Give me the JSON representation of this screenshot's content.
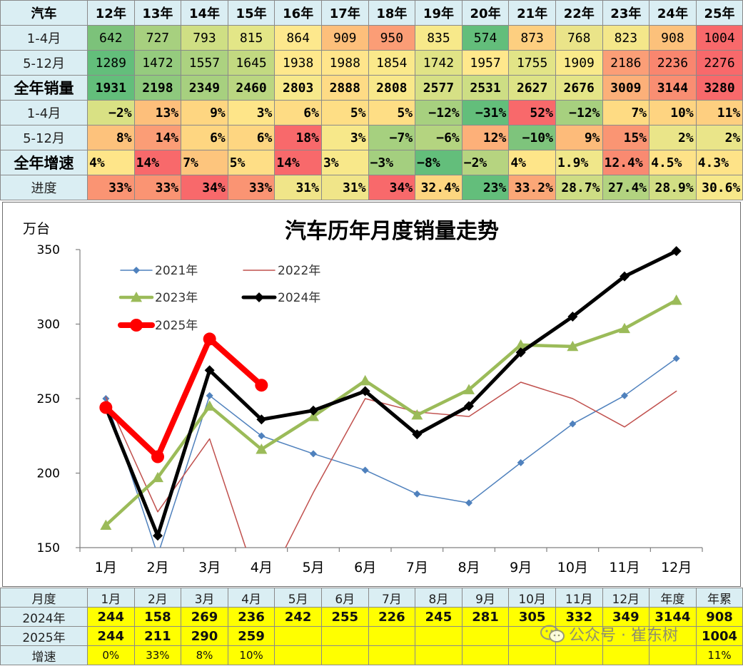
{
  "top_table": {
    "corner": "汽车",
    "years": [
      "12年",
      "13年",
      "14年",
      "15年",
      "16年",
      "17年",
      "18年",
      "19年",
      "20年",
      "21年",
      "22年",
      "23年",
      "24年",
      "25年"
    ],
    "rows": [
      {
        "label": "1-4月",
        "big": false,
        "bold": false,
        "align": "center",
        "values": [
          "642",
          "727",
          "793",
          "815",
          "864",
          "909",
          "950",
          "835",
          "574",
          "873",
          "768",
          "823",
          "908",
          "1004"
        ],
        "colors": [
          "#7cc27a",
          "#a7d07f",
          "#cfdf84",
          "#e3e687",
          "#fde88d",
          "#fdbf7b",
          "#fb9d76",
          "#f7e98a",
          "#63be7b",
          "#fdcf80",
          "#eae489",
          "#f4e78a",
          "#fcc17b",
          "#f8696b"
        ]
      },
      {
        "label": "5-12月",
        "big": false,
        "bold": false,
        "align": "center",
        "values": [
          "1289",
          "1472",
          "1557",
          "1645",
          "1938",
          "1988",
          "1854",
          "1742",
          "1957",
          "1755",
          "1909",
          "2186",
          "2236",
          "2276"
        ],
        "colors": [
          "#63be7b",
          "#95cb7e",
          "#acd280",
          "#c2d981",
          "#fee88c",
          "#ffe58b",
          "#fae98b",
          "#e0e386",
          "#ffe88c",
          "#e2e487",
          "#f9ea8b",
          "#fb9e77",
          "#f9866f",
          "#f8696b"
        ]
      },
      {
        "label": "全年销量",
        "big": true,
        "bold": true,
        "align": "center",
        "values": [
          "1931",
          "2198",
          "2349",
          "2460",
          "2803",
          "2888",
          "2808",
          "2577",
          "2531",
          "2627",
          "2676",
          "3009",
          "3144",
          "3280"
        ],
        "colors": [
          "#63be7b",
          "#8ec97d",
          "#a7d07f",
          "#bad681",
          "#f7e98b",
          "#fedb85",
          "#f8e88a",
          "#d6e085",
          "#cdde84",
          "#dde386",
          "#e4e587",
          "#fcb079",
          "#f98e72",
          "#f8696b"
        ]
      },
      {
        "label": "1-4月",
        "big": false,
        "bold": true,
        "align": "right",
        "values": [
          "−2%",
          "13%",
          "9%",
          "3%",
          "6%",
          "5%",
          "5%",
          "−12%",
          "−31%",
          "52%",
          "−12%",
          "7%",
          "10%",
          "11%"
        ],
        "colors": [
          "#d9e184",
          "#fdbf7b",
          "#fed681",
          "#fee589",
          "#fedc84",
          "#fede85",
          "#fede85",
          "#a7d07f",
          "#63be7b",
          "#f8696b",
          "#a7d07f",
          "#fedb83",
          "#fed481",
          "#fecf80"
        ]
      },
      {
        "label": "5-12月",
        "big": false,
        "bold": true,
        "align": "right",
        "values": [
          "8%",
          "14%",
          "6%",
          "6%",
          "18%",
          "3%",
          "−7%",
          "−6%",
          "12%",
          "−10%",
          "9%",
          "15%",
          "2%",
          "2%"
        ],
        "colors": [
          "#fdc27c",
          "#fb9d76",
          "#fed681",
          "#fed681",
          "#f8696b",
          "#f7e88a",
          "#a6d07f",
          "#b4d480",
          "#fdb079",
          "#7ec47c",
          "#fdbb7a",
          "#fa9573",
          "#eae589",
          "#eae589"
        ]
      },
      {
        "label": "全年增速",
        "big": true,
        "bold": true,
        "align": "left",
        "values": [
          "4%",
          "14%",
          "7%",
          "5%",
          "14%",
          "3%",
          "−3%",
          "−8%",
          "−2%",
          "4%",
          "1.9%",
          "12.4%",
          "4.5%",
          "4.3%"
        ],
        "colors": [
          "#fee589",
          "#f8696b",
          "#fdc57d",
          "#fede86",
          "#f8696b",
          "#f8e88a",
          "#a4cf7f",
          "#63be7b",
          "#b6d480",
          "#fee589",
          "#f0e78a",
          "#f98a71",
          "#fee288",
          "#fee388"
        ]
      },
      {
        "label": "进度",
        "big": false,
        "bold": true,
        "align": "right",
        "values": [
          "33%",
          "33%",
          "34%",
          "33%",
          "31%",
          "31%",
          "34%",
          "32.4%",
          "23%",
          "33.2%",
          "28.7%",
          "27.4%",
          "28.9%",
          "30.6%"
        ],
        "colors": [
          "#fa9473",
          "#fa9473",
          "#f8696b",
          "#fa9473",
          "#f0e589",
          "#f0e589",
          "#f8696b",
          "#fdd680",
          "#63be7b",
          "#fba777",
          "#cedd84",
          "#b2d380",
          "#d1de84",
          "#f7e88a"
        ]
      }
    ]
  },
  "chart_data": {
    "type": "line",
    "title": "汽车历年月度销量走势",
    "ylabel": "万台",
    "ylim": [
      150,
      350
    ],
    "yticks": [
      150,
      200,
      250,
      300,
      350
    ],
    "grid": false,
    "categories": [
      "1月",
      "2月",
      "3月",
      "4月",
      "5月",
      "6月",
      "7月",
      "8月",
      "9月",
      "10月",
      "11月",
      "12月"
    ],
    "series": [
      {
        "name": "2021年",
        "color": "#4f81bd",
        "width": 1.5,
        "marker": "diamond",
        "marker_size": 5,
        "values": [
          250,
          145,
          252,
          225,
          213,
          202,
          186,
          180,
          207,
          233,
          252,
          277
        ]
      },
      {
        "name": "2022年",
        "color": "#c0504d",
        "width": 1.5,
        "marker": "none",
        "marker_size": 0,
        "values": [
          251,
          174,
          223,
          118,
          187,
          250,
          241,
          238,
          261,
          250,
          231,
          255
        ]
      },
      {
        "name": "2023年",
        "color": "#9bbb59",
        "width": 4.5,
        "marker": "triangle",
        "marker_size": 8,
        "values": [
          165,
          197,
          245,
          216,
          238,
          262,
          239,
          256,
          286,
          285,
          297,
          316
        ]
      },
      {
        "name": "2024年",
        "color": "#000000",
        "width": 5,
        "marker": "diamond",
        "marker_size": 7,
        "values": [
          244,
          158,
          269,
          236,
          242,
          255,
          226,
          245,
          281,
          305,
          332,
          349
        ]
      },
      {
        "name": "2025年",
        "color": "#ff0000",
        "width": 8,
        "marker": "circle",
        "marker_size": 9,
        "values": [
          244,
          211,
          290,
          259,
          null,
          null,
          null,
          null,
          null,
          null,
          null,
          null
        ]
      }
    ],
    "legend_position": "top-left"
  },
  "bottom_table": {
    "header": [
      "月度",
      "1月",
      "2月",
      "3月",
      "4月",
      "5月",
      "6月",
      "7月",
      "8月",
      "9月",
      "10月",
      "11月",
      "12月",
      "年度",
      "年累"
    ],
    "rows": [
      {
        "label": "2024年",
        "bold": true,
        "small": false,
        "values": [
          "244",
          "158",
          "269",
          "236",
          "242",
          "255",
          "226",
          "245",
          "281",
          "305",
          "332",
          "349",
          "3144",
          "908"
        ]
      },
      {
        "label": "2025年",
        "bold": true,
        "small": false,
        "values": [
          "244",
          "211",
          "290",
          "259",
          "",
          "",
          "",
          "",
          "",
          "",
          "",
          "",
          "",
          "1004"
        ]
      },
      {
        "label": "增速",
        "bold": false,
        "small": true,
        "values": [
          "0%",
          "33%",
          "8%",
          "10%",
          "",
          "",
          "",
          "",
          "",
          "",
          "",
          "",
          "",
          "11%"
        ]
      }
    ]
  },
  "watermark": {
    "text": "公众号 · 崔东树"
  }
}
